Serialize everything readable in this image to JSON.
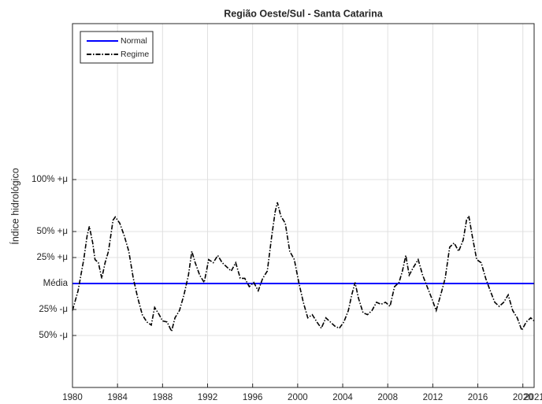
{
  "chart_data": {
    "type": "line",
    "title": "Região Oeste/Sul - Santa Catarina",
    "y_label": "Índice hidrológico",
    "xlim": [
      1980,
      2021
    ],
    "xticks": [
      1980,
      1984,
      1988,
      1992,
      1996,
      2000,
      2004,
      2008,
      2012,
      2016,
      2020,
      2021
    ],
    "ylim": [
      -100,
      250
    ],
    "yticks": [
      {
        "value": -50,
        "label": "50% -μ"
      },
      {
        "value": -25,
        "label": "25% -μ"
      },
      {
        "value": 0,
        "label": "Média"
      },
      {
        "value": 25,
        "label": "25% +μ"
      },
      {
        "value": 50,
        "label": "50% +μ"
      },
      {
        "value": 100,
        "label": "100% +μ"
      }
    ],
    "grid": true,
    "legend": "upper-left",
    "series": [
      {
        "name": "Normal",
        "color": "#0000ff",
        "style": "solid",
        "x": [
          1980,
          2021
        ],
        "values": [
          0,
          0
        ]
      },
      {
        "name": "Regime",
        "color": "#000000",
        "style": "dashdot",
        "x": [
          1980.0,
          1980.5,
          1981.0,
          1981.3,
          1981.5,
          1981.8,
          1982.0,
          1982.3,
          1982.6,
          1982.9,
          1983.2,
          1983.6,
          1983.8,
          1984.2,
          1984.6,
          1985.0,
          1985.4,
          1985.8,
          1986.2,
          1986.6,
          1987.0,
          1987.3,
          1987.7,
          1988.0,
          1988.4,
          1988.8,
          1989.1,
          1989.5,
          1989.9,
          1990.3,
          1990.6,
          1990.9,
          1991.3,
          1991.7,
          1992.1,
          1992.5,
          1992.9,
          1993.3,
          1993.7,
          1994.1,
          1994.5,
          1994.9,
          1995.3,
          1995.7,
          1996.1,
          1996.5,
          1996.9,
          1997.3,
          1997.7,
          1998.0,
          1998.2,
          1998.5,
          1998.9,
          1999.3,
          1999.7,
          2000.1,
          2000.5,
          2000.9,
          2001.3,
          2001.7,
          2002.1,
          2002.5,
          2002.9,
          2003.3,
          2003.7,
          2004.1,
          2004.5,
          2004.8,
          2005.1,
          2005.4,
          2005.8,
          2006.2,
          2006.6,
          2007.0,
          2007.4,
          2007.8,
          2008.2,
          2008.6,
          2009.0,
          2009.3,
          2009.6,
          2009.9,
          2010.3,
          2010.7,
          2011.1,
          2011.5,
          2011.9,
          2012.3,
          2012.7,
          2013.1,
          2013.5,
          2013.9,
          2014.3,
          2014.7,
          2015.0,
          2015.2,
          2015.5,
          2015.9,
          2016.3,
          2016.7,
          2017.1,
          2017.5,
          2017.9,
          2018.3,
          2018.7,
          2019.1,
          2019.5,
          2019.9,
          2020.3,
          2020.7,
          2021.0
        ],
        "values": [
          -26,
          -7,
          23,
          46,
          55,
          39,
          23,
          20,
          5,
          20,
          31,
          61,
          64,
          58,
          46,
          31,
          5,
          -14,
          -30,
          -37,
          -40,
          -23,
          -30,
          -36,
          -37,
          -46,
          -33,
          -26,
          -11,
          8,
          31,
          20,
          8,
          1,
          23,
          20,
          27,
          20,
          16,
          12,
          20,
          5,
          5,
          -3,
          1,
          -7,
          5,
          12,
          46,
          69,
          78,
          65,
          58,
          31,
          23,
          1,
          -18,
          -33,
          -30,
          -37,
          -43,
          -33,
          -37,
          -41,
          -43,
          -37,
          -26,
          -11,
          1,
          -14,
          -28,
          -30,
          -26,
          -18,
          -20,
          -18,
          -22,
          -3,
          1,
          12,
          27,
          8,
          16,
          23,
          8,
          -3,
          -14,
          -26,
          -11,
          5,
          35,
          39,
          31,
          42,
          61,
          65,
          46,
          23,
          20,
          5,
          -7,
          -18,
          -22,
          -18,
          -11,
          -26,
          -33,
          -45,
          -37,
          -33,
          -36
        ]
      }
    ]
  }
}
